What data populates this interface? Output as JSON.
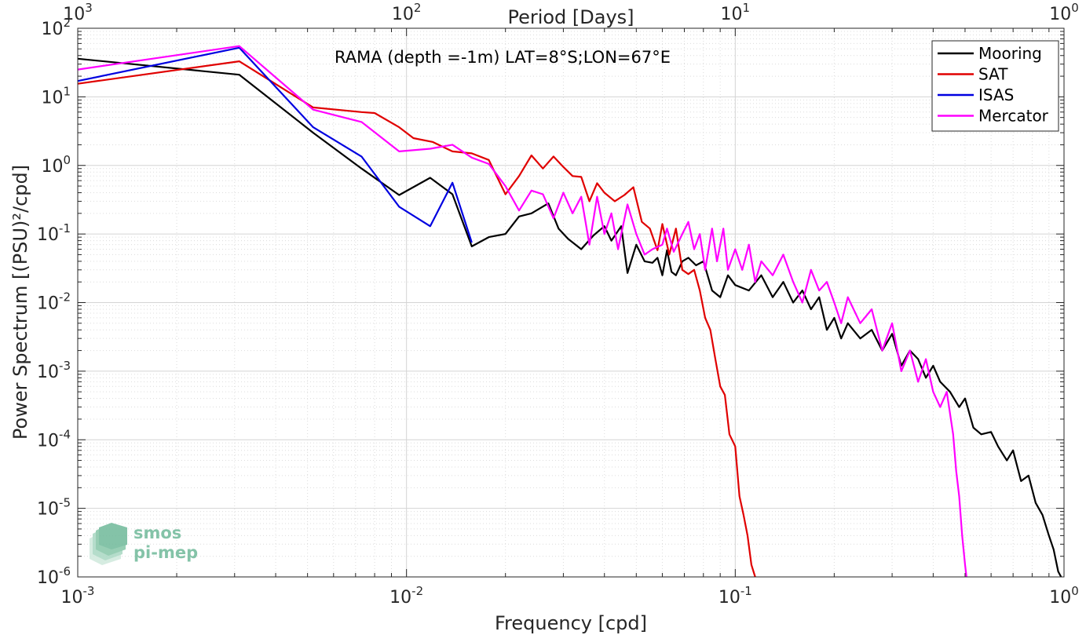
{
  "chart_data": {
    "type": "line",
    "title": "RAMA (depth =-1m) LAT=8°S;LON=67°E",
    "xlabel": "Frequency [cpd]",
    "ylabel": "Power Spectrum [(PSU)²/cpd]",
    "top_xlabel": "Period [Days]",
    "x_scale": "log",
    "y_scale": "log",
    "xlim": [
      0.001,
      1
    ],
    "ylim": [
      1e-06,
      100
    ],
    "grid": true,
    "legend_position": "top-right",
    "x_ticks": [
      {
        "value": 0.001,
        "base": "10",
        "exp": "-3"
      },
      {
        "value": 0.01,
        "base": "10",
        "exp": "-2"
      },
      {
        "value": 0.1,
        "base": "10",
        "exp": "-1"
      },
      {
        "value": 1,
        "base": "10",
        "exp": "0"
      }
    ],
    "y_ticks": [
      {
        "value": 100,
        "base": "10",
        "exp": "2"
      },
      {
        "value": 10,
        "base": "10",
        "exp": "1"
      },
      {
        "value": 1,
        "base": "10",
        "exp": "0"
      },
      {
        "value": 0.1,
        "base": "10",
        "exp": "-1"
      },
      {
        "value": 0.01,
        "base": "10",
        "exp": "-2"
      },
      {
        "value": 0.001,
        "base": "10",
        "exp": "-3"
      },
      {
        "value": 0.0001,
        "base": "10",
        "exp": "-4"
      },
      {
        "value": 1e-05,
        "base": "10",
        "exp": "-5"
      },
      {
        "value": 1e-06,
        "base": "10",
        "exp": "-6"
      }
    ],
    "top_ticks": [
      {
        "period": 1000,
        "base": "10",
        "exp": "3"
      },
      {
        "period": 100,
        "base": "10",
        "exp": "2"
      },
      {
        "period": 10,
        "base": "10",
        "exp": "1"
      },
      {
        "period": 1,
        "base": "10",
        "exp": "0"
      }
    ],
    "series": [
      {
        "name": "Mooring",
        "color": "#000000",
        "points": [
          [
            0.001,
            36
          ],
          [
            0.0031,
            21
          ],
          [
            0.0052,
            3
          ],
          [
            0.0073,
            0.9
          ],
          [
            0.0095,
            0.37
          ],
          [
            0.0118,
            0.66
          ],
          [
            0.0138,
            0.38
          ],
          [
            0.0158,
            0.066
          ],
          [
            0.0178,
            0.09
          ],
          [
            0.02,
            0.1
          ],
          [
            0.022,
            0.18
          ],
          [
            0.024,
            0.2
          ],
          [
            0.027,
            0.28
          ],
          [
            0.029,
            0.12
          ],
          [
            0.031,
            0.085
          ],
          [
            0.034,
            0.06
          ],
          [
            0.037,
            0.095
          ],
          [
            0.04,
            0.13
          ],
          [
            0.042,
            0.08
          ],
          [
            0.045,
            0.13
          ],
          [
            0.047,
            0.027
          ],
          [
            0.05,
            0.07
          ],
          [
            0.053,
            0.04
          ],
          [
            0.056,
            0.038
          ],
          [
            0.058,
            0.045
          ],
          [
            0.06,
            0.025
          ],
          [
            0.062,
            0.058
          ],
          [
            0.064,
            0.028
          ],
          [
            0.066,
            0.025
          ],
          [
            0.069,
            0.04
          ],
          [
            0.072,
            0.045
          ],
          [
            0.076,
            0.035
          ],
          [
            0.08,
            0.04
          ],
          [
            0.085,
            0.015
          ],
          [
            0.09,
            0.012
          ],
          [
            0.095,
            0.025
          ],
          [
            0.1,
            0.018
          ],
          [
            0.11,
            0.015
          ],
          [
            0.12,
            0.025
          ],
          [
            0.13,
            0.012
          ],
          [
            0.14,
            0.02
          ],
          [
            0.15,
            0.01
          ],
          [
            0.16,
            0.015
          ],
          [
            0.17,
            0.008
          ],
          [
            0.18,
            0.012
          ],
          [
            0.19,
            0.004
          ],
          [
            0.2,
            0.006
          ],
          [
            0.21,
            0.003
          ],
          [
            0.22,
            0.005
          ],
          [
            0.24,
            0.003
          ],
          [
            0.26,
            0.004
          ],
          [
            0.28,
            0.002
          ],
          [
            0.3,
            0.0035
          ],
          [
            0.32,
            0.0012
          ],
          [
            0.34,
            0.002
          ],
          [
            0.36,
            0.0015
          ],
          [
            0.38,
            0.0008
          ],
          [
            0.4,
            0.0012
          ],
          [
            0.42,
            0.0007
          ],
          [
            0.45,
            0.0005
          ],
          [
            0.48,
            0.0003
          ],
          [
            0.5,
            0.0004
          ],
          [
            0.53,
            0.00015
          ],
          [
            0.56,
            0.00012
          ],
          [
            0.6,
            0.00013
          ],
          [
            0.63,
            8e-05
          ],
          [
            0.67,
            5e-05
          ],
          [
            0.7,
            7e-05
          ],
          [
            0.74,
            2.5e-05
          ],
          [
            0.78,
            3e-05
          ],
          [
            0.82,
            1.2e-05
          ],
          [
            0.86,
            8e-06
          ],
          [
            0.9,
            4e-06
          ],
          [
            0.93,
            2.5e-06
          ],
          [
            0.96,
            1.2e-06
          ],
          [
            0.98,
            1e-06
          ]
        ]
      },
      {
        "name": "SAT",
        "color": "#e00000",
        "points": [
          [
            0.001,
            15.5
          ],
          [
            0.0031,
            33
          ],
          [
            0.0052,
            7
          ],
          [
            0.0073,
            6
          ],
          [
            0.008,
            5.8
          ],
          [
            0.0095,
            3.6
          ],
          [
            0.0105,
            2.5
          ],
          [
            0.012,
            2.2
          ],
          [
            0.0138,
            1.6
          ],
          [
            0.0158,
            1.5
          ],
          [
            0.0178,
            1.2
          ],
          [
            0.02,
            0.38
          ],
          [
            0.022,
            0.7
          ],
          [
            0.024,
            1.4
          ],
          [
            0.026,
            0.9
          ],
          [
            0.028,
            1.35
          ],
          [
            0.03,
            0.95
          ],
          [
            0.032,
            0.7
          ],
          [
            0.034,
            0.68
          ],
          [
            0.036,
            0.3
          ],
          [
            0.038,
            0.55
          ],
          [
            0.04,
            0.4
          ],
          [
            0.043,
            0.3
          ],
          [
            0.046,
            0.37
          ],
          [
            0.049,
            0.48
          ],
          [
            0.052,
            0.15
          ],
          [
            0.055,
            0.12
          ],
          [
            0.058,
            0.058
          ],
          [
            0.06,
            0.14
          ],
          [
            0.063,
            0.05
          ],
          [
            0.066,
            0.12
          ],
          [
            0.069,
            0.03
          ],
          [
            0.072,
            0.026
          ],
          [
            0.075,
            0.03
          ],
          [
            0.078,
            0.015
          ],
          [
            0.081,
            0.006
          ],
          [
            0.084,
            0.004
          ],
          [
            0.087,
            0.0015
          ],
          [
            0.09,
            0.0006
          ],
          [
            0.093,
            0.00045
          ],
          [
            0.096,
            0.00012
          ],
          [
            0.1,
            8e-05
          ],
          [
            0.103,
            1.5e-05
          ],
          [
            0.106,
            8e-06
          ],
          [
            0.109,
            4e-06
          ],
          [
            0.112,
            1.5e-06
          ],
          [
            0.115,
            1e-06
          ]
        ]
      },
      {
        "name": "ISAS",
        "color": "#0000e0",
        "points": [
          [
            0.001,
            17
          ],
          [
            0.0031,
            52
          ],
          [
            0.0052,
            3.6
          ],
          [
            0.0073,
            1.35
          ],
          [
            0.0095,
            0.25
          ],
          [
            0.0118,
            0.13
          ],
          [
            0.0138,
            0.56
          ],
          [
            0.0158,
            0.075
          ]
        ]
      },
      {
        "name": "Mercator",
        "color": "#ff00ff",
        "points": [
          [
            0.001,
            25
          ],
          [
            0.0031,
            55
          ],
          [
            0.0052,
            6.5
          ],
          [
            0.0073,
            4.3
          ],
          [
            0.0095,
            1.6
          ],
          [
            0.0118,
            1.75
          ],
          [
            0.0138,
            2
          ],
          [
            0.0158,
            1.3
          ],
          [
            0.0178,
            1.05
          ],
          [
            0.02,
            0.5
          ],
          [
            0.022,
            0.22
          ],
          [
            0.024,
            0.43
          ],
          [
            0.026,
            0.38
          ],
          [
            0.028,
            0.17
          ],
          [
            0.03,
            0.4
          ],
          [
            0.032,
            0.2
          ],
          [
            0.034,
            0.35
          ],
          [
            0.036,
            0.07
          ],
          [
            0.038,
            0.35
          ],
          [
            0.04,
            0.1
          ],
          [
            0.042,
            0.2
          ],
          [
            0.044,
            0.06
          ],
          [
            0.047,
            0.27
          ],
          [
            0.05,
            0.1
          ],
          [
            0.053,
            0.05
          ],
          [
            0.056,
            0.06
          ],
          [
            0.06,
            0.07
          ],
          [
            0.062,
            0.12
          ],
          [
            0.065,
            0.055
          ],
          [
            0.069,
            0.1
          ],
          [
            0.072,
            0.15
          ],
          [
            0.075,
            0.06
          ],
          [
            0.078,
            0.1
          ],
          [
            0.081,
            0.03
          ],
          [
            0.085,
            0.12
          ],
          [
            0.088,
            0.04
          ],
          [
            0.092,
            0.12
          ],
          [
            0.095,
            0.03
          ],
          [
            0.1,
            0.06
          ],
          [
            0.105,
            0.03
          ],
          [
            0.11,
            0.07
          ],
          [
            0.115,
            0.02
          ],
          [
            0.12,
            0.04
          ],
          [
            0.13,
            0.025
          ],
          [
            0.14,
            0.05
          ],
          [
            0.15,
            0.02
          ],
          [
            0.16,
            0.01
          ],
          [
            0.17,
            0.03
          ],
          [
            0.18,
            0.015
          ],
          [
            0.19,
            0.02
          ],
          [
            0.2,
            0.01
          ],
          [
            0.21,
            0.005
          ],
          [
            0.22,
            0.012
          ],
          [
            0.24,
            0.005
          ],
          [
            0.26,
            0.008
          ],
          [
            0.28,
            0.002
          ],
          [
            0.3,
            0.005
          ],
          [
            0.32,
            0.001
          ],
          [
            0.34,
            0.002
          ],
          [
            0.36,
            0.0007
          ],
          [
            0.38,
            0.0015
          ],
          [
            0.4,
            0.0005
          ],
          [
            0.42,
            0.0003
          ],
          [
            0.44,
            0.0005
          ],
          [
            0.46,
            0.00012
          ],
          [
            0.47,
            3.5e-05
          ],
          [
            0.48,
            1.5e-05
          ],
          [
            0.49,
            4e-06
          ],
          [
            0.5,
            1.5e-06
          ],
          [
            0.505,
            1e-06
          ]
        ]
      }
    ]
  },
  "logo": {
    "line1": "smos",
    "line2": "pi-mep"
  }
}
